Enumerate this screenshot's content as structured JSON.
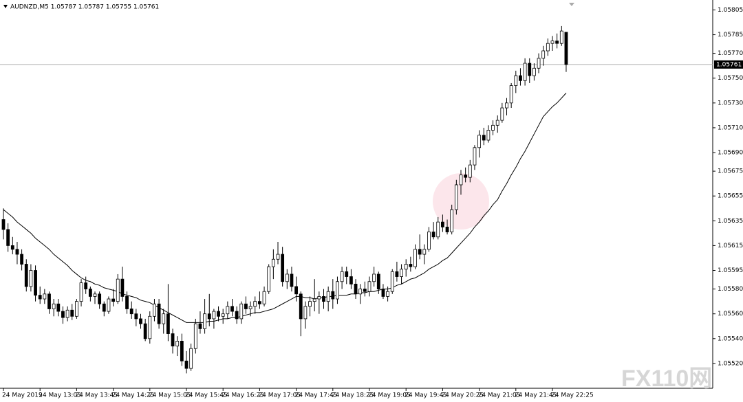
{
  "chart_data": {
    "type": "candlestick",
    "title": "AUDNZD,M5  1.05787 1.05787 1.05755 1.05761",
    "watermark": "FX110网",
    "categories": [
      "24 May 2019",
      null,
      null,
      null,
      null,
      null,
      null,
      null,
      "24 May 13:05",
      null,
      null,
      null,
      null,
      null,
      null,
      null,
      "24 May 13:45",
      null,
      null,
      null,
      null,
      null,
      null,
      null,
      "24 May 14:25",
      null,
      null,
      null,
      null,
      null,
      null,
      null,
      "24 May 15:05",
      null,
      null,
      null,
      null,
      null,
      null,
      null,
      "24 May 15:45",
      null,
      null,
      null,
      null,
      null,
      null,
      null,
      "24 May 16:25",
      null,
      null,
      null,
      null,
      null,
      null,
      null,
      "24 May 17:05",
      null,
      null,
      null,
      null,
      null,
      null,
      null,
      "24 May 17:45",
      null,
      null,
      null,
      null,
      null,
      null,
      null,
      "24 May 18:25",
      null,
      null,
      null,
      null,
      null,
      null,
      null,
      "24 May 19:05",
      null,
      null,
      null,
      null,
      null,
      null,
      null,
      "24 May 19:45",
      null,
      null,
      null,
      null,
      null,
      null,
      null,
      "24 May 20:25",
      null,
      null,
      null,
      null,
      null,
      null,
      null,
      "24 May 21:05",
      null,
      null,
      null,
      null,
      null,
      null,
      null,
      "24 May 21:45",
      null,
      null,
      null,
      null,
      null,
      null,
      null,
      "24 May 22:25",
      null,
      null,
      null
    ],
    "open": [
      1.05636,
      1.05628,
      1.05615,
      1.05612,
      1.05608,
      1.056,
      1.05582,
      1.05595,
      1.05575,
      1.05572,
      1.05576,
      1.05564,
      1.05568,
      1.05562,
      1.05557,
      1.05563,
      1.05558,
      1.0557,
      1.05585,
      1.0558,
      1.05574,
      1.05576,
      1.05568,
      1.05562,
      1.05572,
      1.0557,
      1.05588,
      1.05574,
      1.05564,
      1.0556,
      1.05556,
      1.05552,
      1.0554,
      1.05558,
      1.05568,
      1.05552,
      1.0556,
      1.05544,
      1.05534,
      1.05538,
      1.05522,
      1.05516,
      1.05532,
      1.05552,
      1.05548,
      1.0556,
      1.05556,
      1.05562,
      1.05558,
      1.0556,
      1.05566,
      1.05562,
      1.05556,
      1.05568,
      1.05564,
      1.05566,
      1.0557,
      1.05568,
      1.05578,
      1.05598,
      1.05604,
      1.05608,
      1.05586,
      1.05592,
      1.05582,
      1.05576,
      1.05556,
      1.05566,
      1.0557,
      1.05572,
      1.05574,
      1.0557,
      1.05578,
      1.05572,
      1.05586,
      1.05594,
      1.0559,
      1.05584,
      1.05576,
      1.0558,
      1.05578,
      1.05586,
      1.05592,
      1.0558,
      1.05574,
      1.05578,
      1.05594,
      1.0559,
      1.05596,
      1.056,
      1.05598,
      1.05612,
      1.05608,
      1.05612,
      1.05626,
      1.05622,
      1.05634,
      1.0563,
      1.05626,
      1.05644,
      1.05664,
      1.05672,
      1.0567,
      1.0568,
      1.05694,
      1.05704,
      1.057,
      1.05708,
      1.05712,
      1.05716,
      1.05726,
      1.0573,
      1.05744,
      1.05752,
      1.05748,
      1.05762,
      1.05752,
      1.05758,
      1.05766,
      1.05772,
      1.05778,
      1.0578,
      1.05778,
      1.05787
    ],
    "high": [
      1.05645,
      1.05633,
      1.05622,
      1.05618,
      1.05612,
      1.05604,
      1.056,
      1.05599,
      1.05582,
      1.0558,
      1.05578,
      1.05572,
      1.05572,
      1.05566,
      1.05566,
      1.05568,
      1.05572,
      1.05588,
      1.0559,
      1.05582,
      1.05578,
      1.05578,
      1.0557,
      1.05574,
      1.0558,
      1.05592,
      1.05598,
      1.05578,
      1.0557,
      1.05564,
      1.0556,
      1.05556,
      1.05562,
      1.05572,
      1.05572,
      1.05564,
      1.05584,
      1.05548,
      1.05542,
      1.05544,
      1.0553,
      1.05536,
      1.05556,
      1.05562,
      1.05572,
      1.05576,
      1.05564,
      1.05566,
      1.05564,
      1.0557,
      1.05572,
      1.05566,
      1.0557,
      1.05574,
      1.0557,
      1.05574,
      1.05578,
      1.05582,
      1.056,
      1.05612,
      1.05618,
      1.05614,
      1.05596,
      1.05598,
      1.0559,
      1.05578,
      1.0557,
      1.05574,
      1.05588,
      1.05578,
      1.0558,
      1.05582,
      1.05588,
      1.0559,
      1.05598,
      1.05598,
      1.05596,
      1.05588,
      1.05584,
      1.05586,
      1.0559,
      1.05598,
      1.05594,
      1.05584,
      1.05582,
      1.05596,
      1.05602,
      1.056,
      1.05604,
      1.05606,
      1.05616,
      1.05624,
      1.05616,
      1.0563,
      1.05634,
      1.05638,
      1.0564,
      1.05636,
      1.05648,
      1.05668,
      1.05676,
      1.05678,
      1.05684,
      1.05696,
      1.05708,
      1.0571,
      1.05712,
      1.05716,
      1.0572,
      1.0573,
      1.05734,
      1.05746,
      1.05756,
      1.05758,
      1.05766,
      1.05766,
      1.05762,
      1.0577,
      1.05776,
      1.05782,
      1.05784,
      1.05786,
      1.05792,
      1.05787
    ],
    "low": [
      1.0562,
      1.0561,
      1.05608,
      1.056,
      1.05595,
      1.05578,
      1.05578,
      1.0557,
      1.05568,
      1.05568,
      1.0556,
      1.05558,
      1.05558,
      1.05552,
      1.05554,
      1.05555,
      1.05556,
      1.05566,
      1.05576,
      1.0557,
      1.05568,
      1.05564,
      1.05558,
      1.0556,
      1.05566,
      1.05568,
      1.0557,
      1.0556,
      1.05556,
      1.0555,
      1.05548,
      1.05538,
      1.05536,
      1.05554,
      1.05548,
      1.05544,
      1.05538,
      1.05528,
      1.05526,
      1.05518,
      1.05512,
      1.05514,
      1.05528,
      1.05544,
      1.05544,
      1.0555,
      1.05548,
      1.05554,
      1.05552,
      1.05556,
      1.05558,
      1.05552,
      1.05552,
      1.0556,
      1.05558,
      1.0556,
      1.05564,
      1.05566,
      1.05576,
      1.05588,
      1.056,
      1.05582,
      1.0558,
      1.05578,
      1.0557,
      1.05542,
      1.05548,
      1.05558,
      1.05562,
      1.0556,
      1.05564,
      1.05562,
      1.05564,
      1.05568,
      1.0558,
      1.05584,
      1.0558,
      1.05572,
      1.05568,
      1.05574,
      1.05574,
      1.05582,
      1.05576,
      1.05572,
      1.0557,
      1.05576,
      1.05586,
      1.05584,
      1.0559,
      1.05594,
      1.05596,
      1.05604,
      1.056,
      1.0561,
      1.0562,
      1.0562,
      1.05626,
      1.05624,
      1.05624,
      1.0564,
      1.05656,
      1.05666,
      1.05666,
      1.05676,
      1.05686,
      1.05696,
      1.05698,
      1.05704,
      1.05706,
      1.05714,
      1.0572,
      1.05726,
      1.05738,
      1.05744,
      1.05744,
      1.05746,
      1.05748,
      1.05754,
      1.0576,
      1.05768,
      1.05772,
      1.05774,
      1.05776,
      1.05755
    ],
    "close": [
      1.05628,
      1.05615,
      1.05612,
      1.05608,
      1.056,
      1.05582,
      1.05595,
      1.05575,
      1.05572,
      1.05576,
      1.05564,
      1.05568,
      1.05562,
      1.05557,
      1.05563,
      1.05558,
      1.0557,
      1.05585,
      1.0558,
      1.05574,
      1.05576,
      1.05568,
      1.05562,
      1.05572,
      1.0557,
      1.05588,
      1.05574,
      1.05564,
      1.0556,
      1.05556,
      1.05552,
      1.0554,
      1.05558,
      1.05568,
      1.05552,
      1.0556,
      1.05544,
      1.05534,
      1.05538,
      1.05522,
      1.05516,
      1.05532,
      1.05552,
      1.05548,
      1.0556,
      1.05556,
      1.05562,
      1.05558,
      1.0556,
      1.05566,
      1.05562,
      1.05556,
      1.05568,
      1.05564,
      1.05566,
      1.0557,
      1.05568,
      1.05578,
      1.05598,
      1.05604,
      1.05608,
      1.05586,
      1.05592,
      1.05582,
      1.05576,
      1.05556,
      1.05566,
      1.0557,
      1.05572,
      1.05574,
      1.0557,
      1.05578,
      1.05572,
      1.05586,
      1.05594,
      1.0559,
      1.05584,
      1.05576,
      1.0558,
      1.05578,
      1.05586,
      1.05592,
      1.0558,
      1.05574,
      1.05578,
      1.05594,
      1.0559,
      1.05596,
      1.056,
      1.05598,
      1.05612,
      1.05608,
      1.05612,
      1.05626,
      1.05622,
      1.05634,
      1.0563,
      1.05626,
      1.05644,
      1.05664,
      1.05672,
      1.0567,
      1.0568,
      1.05694,
      1.05704,
      1.057,
      1.05708,
      1.05712,
      1.05716,
      1.05726,
      1.0573,
      1.05744,
      1.05752,
      1.05748,
      1.05762,
      1.05752,
      1.05758,
      1.05766,
      1.05772,
      1.05778,
      1.0578,
      1.05778,
      1.05788,
      1.05761
    ],
    "moving_average": {
      "color": "#000000",
      "values": [
        1.05644,
        1.05641,
        1.05638,
        1.05634,
        1.05631,
        1.05628,
        1.05625,
        1.05621,
        1.05618,
        1.05615,
        1.05612,
        1.05608,
        1.05605,
        1.05602,
        1.05599,
        1.05595,
        1.05592,
        1.05589,
        1.05587,
        1.05586,
        1.05584,
        1.05583,
        1.05581,
        1.0558,
        1.05579,
        1.05578,
        1.05576,
        1.05575,
        1.05574,
        1.05573,
        1.05571,
        1.0557,
        1.05569,
        1.05567,
        1.05565,
        1.05563,
        1.05561,
        1.05559,
        1.05557,
        1.05555,
        1.05553,
        1.05553,
        1.05553,
        1.05553,
        1.05553,
        1.05554,
        1.05554,
        1.05555,
        1.05556,
        1.05556,
        1.05557,
        1.05557,
        1.05558,
        1.05559,
        1.0556,
        1.05561,
        1.05561,
        1.05562,
        1.05563,
        1.05564,
        1.05566,
        1.05568,
        1.0557,
        1.05572,
        1.05574,
        1.05574,
        1.05573,
        1.05573,
        1.05572,
        1.05573,
        1.05573,
        1.05574,
        1.05574,
        1.05575,
        1.05575,
        1.05575,
        1.05576,
        1.05576,
        1.05577,
        1.05577,
        1.05578,
        1.05578,
        1.05579,
        1.0558,
        1.0558,
        1.05581,
        1.05583,
        1.05584,
        1.05586,
        1.05588,
        1.05589,
        1.05591,
        1.05593,
        1.05596,
        1.05598,
        1.056,
        1.05603,
        1.05605,
        1.05609,
        1.05613,
        1.05617,
        1.05621,
        1.05625,
        1.0563,
        1.05634,
        1.05639,
        1.05643,
        1.05648,
        1.05652,
        1.05659,
        1.05665,
        1.05672,
        1.05678,
        1.05685,
        1.05691,
        1.05698,
        1.05705,
        1.05712,
        1.05719,
        1.05723,
        1.05727,
        1.0573,
        1.05734,
        1.05738
      ]
    },
    "bull_color": "#ffffff",
    "bear_color": "#000000",
    "current_price": 1.05761,
    "ylim": [
      1.055,
      1.05813
    ],
    "yticks": [
      1.05805,
      1.05785,
      {
        "value": 1.0577,
        "label": "1.05770"
      },
      {
        "value": 1.0575,
        "label": "1.05750"
      },
      {
        "value": 1.0573,
        "label": "1.05730"
      },
      {
        "value": 1.0571,
        "label": "1.05710"
      },
      {
        "value": 1.0569,
        "label": "1.05690"
      },
      1.05675,
      1.05655,
      1.05635,
      1.05615,
      1.05595,
      {
        "value": 1.0558,
        "label": "1.05580"
      },
      {
        "value": 1.0556,
        "label": "1.05560"
      },
      {
        "value": 1.0554,
        "label": "1.05540"
      },
      {
        "value": 1.0552,
        "label": "1.05520"
      }
    ],
    "grid": false
  }
}
